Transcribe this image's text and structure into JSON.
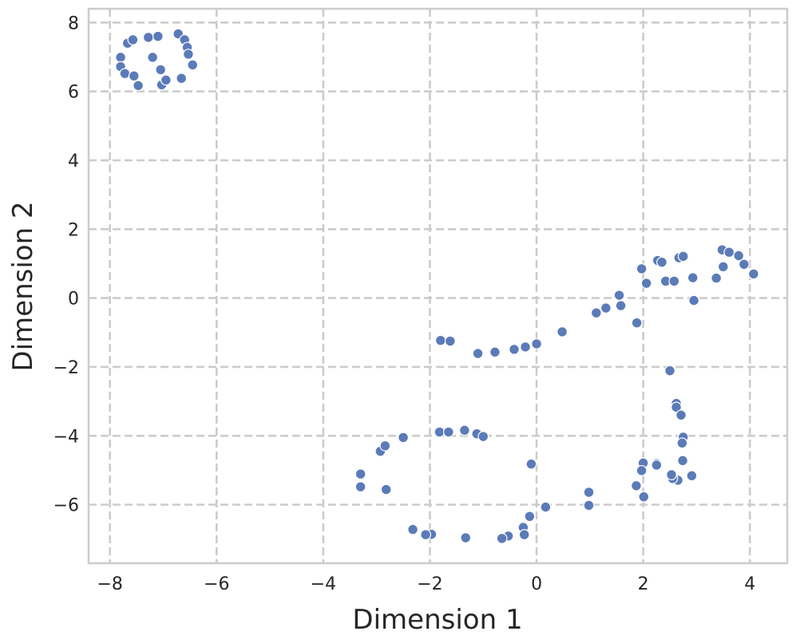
{
  "chart_data": {
    "type": "scatter",
    "title": "",
    "xlabel": "Dimension 1",
    "ylabel": "Dimension 2",
    "xlim": [
      -8.4,
      4.7
    ],
    "ylim": [
      -7.7,
      8.4
    ],
    "xticks": [
      -8,
      -6,
      -4,
      -2,
      0,
      2,
      4
    ],
    "yticks": [
      -6,
      -4,
      -2,
      0,
      2,
      4,
      6,
      8
    ],
    "xtick_labels": [
      "−8",
      "−6",
      "−4",
      "−2",
      "0",
      "2",
      "4"
    ],
    "ytick_labels": [
      "−6",
      "−4",
      "−2",
      "0",
      "2",
      "4",
      "6",
      "8"
    ],
    "grid": true,
    "legend": false,
    "point_color": "#5b7bb8",
    "points": [
      [
        -7.8,
        6.99
      ],
      [
        -7.8,
        6.72
      ],
      [
        -7.72,
        6.52
      ],
      [
        -7.67,
        7.4
      ],
      [
        -7.57,
        7.5
      ],
      [
        -7.55,
        6.45
      ],
      [
        -7.47,
        6.17
      ],
      [
        -7.28,
        7.57
      ],
      [
        -7.2,
        6.99
      ],
      [
        -7.1,
        7.6
      ],
      [
        -7.05,
        6.63
      ],
      [
        -7.03,
        6.19
      ],
      [
        -6.95,
        6.33
      ],
      [
        -6.72,
        7.67
      ],
      [
        -6.66,
        6.38
      ],
      [
        -6.6,
        7.5
      ],
      [
        -6.55,
        7.28
      ],
      [
        -6.53,
        7.08
      ],
      [
        -6.45,
        6.77
      ],
      [
        -1.8,
        -1.23
      ],
      [
        -1.62,
        -1.25
      ],
      [
        -1.1,
        -1.61
      ],
      [
        -0.78,
        -1.57
      ],
      [
        -0.42,
        -1.49
      ],
      [
        -0.21,
        -1.42
      ],
      [
        0.0,
        -1.33
      ],
      [
        0.48,
        -0.98
      ],
      [
        1.12,
        -0.43
      ],
      [
        1.3,
        -0.29
      ],
      [
        1.55,
        0.08
      ],
      [
        1.58,
        -0.22
      ],
      [
        1.88,
        -0.72
      ],
      [
        1.97,
        0.85
      ],
      [
        2.06,
        0.43
      ],
      [
        2.27,
        1.09
      ],
      [
        2.35,
        1.04
      ],
      [
        2.42,
        0.49
      ],
      [
        2.58,
        0.49
      ],
      [
        2.67,
        1.17
      ],
      [
        2.75,
        1.21
      ],
      [
        2.93,
        0.59
      ],
      [
        2.95,
        -0.07
      ],
      [
        3.37,
        0.58
      ],
      [
        3.48,
        1.4
      ],
      [
        3.5,
        0.91
      ],
      [
        3.61,
        1.33
      ],
      [
        3.79,
        1.23
      ],
      [
        3.89,
        0.98
      ],
      [
        4.07,
        0.7
      ],
      [
        2.5,
        -2.11
      ],
      [
        2.62,
        -3.06
      ],
      [
        2.62,
        -3.17
      ],
      [
        2.71,
        -3.4
      ],
      [
        2.75,
        -4.04
      ],
      [
        2.73,
        -4.21
      ],
      [
        2.74,
        -4.72
      ],
      [
        2.91,
        -5.16
      ],
      [
        2.65,
        -5.29
      ],
      [
        2.55,
        -5.24
      ],
      [
        2.53,
        -5.13
      ],
      [
        2.25,
        -4.81
      ],
      [
        2.25,
        -4.85
      ],
      [
        2.0,
        -4.79
      ],
      [
        1.97,
        -5.01
      ],
      [
        1.87,
        -5.45
      ],
      [
        2.01,
        -5.77
      ],
      [
        0.98,
        -5.64
      ],
      [
        0.98,
        -6.02
      ],
      [
        0.17,
        -6.07
      ],
      [
        -0.13,
        -6.34
      ],
      [
        -0.25,
        -6.66
      ],
      [
        -0.23,
        -6.87
      ],
      [
        -0.1,
        -4.82
      ],
      [
        -0.53,
        -6.91
      ],
      [
        -0.65,
        -6.98
      ],
      [
        -1.33,
        -6.96
      ],
      [
        -1.97,
        -6.86
      ],
      [
        -2.08,
        -6.87
      ],
      [
        -2.32,
        -6.72
      ],
      [
        -2.82,
        -5.56
      ],
      [
        -3.3,
        -5.11
      ],
      [
        -3.3,
        -5.48
      ],
      [
        -2.93,
        -4.45
      ],
      [
        -2.84,
        -4.29
      ],
      [
        -2.5,
        -4.05
      ],
      [
        -1.82,
        -3.89
      ],
      [
        -1.65,
        -3.89
      ],
      [
        -1.35,
        -3.84
      ],
      [
        -1.12,
        -3.94
      ],
      [
        -1.0,
        -4.02
      ]
    ]
  }
}
